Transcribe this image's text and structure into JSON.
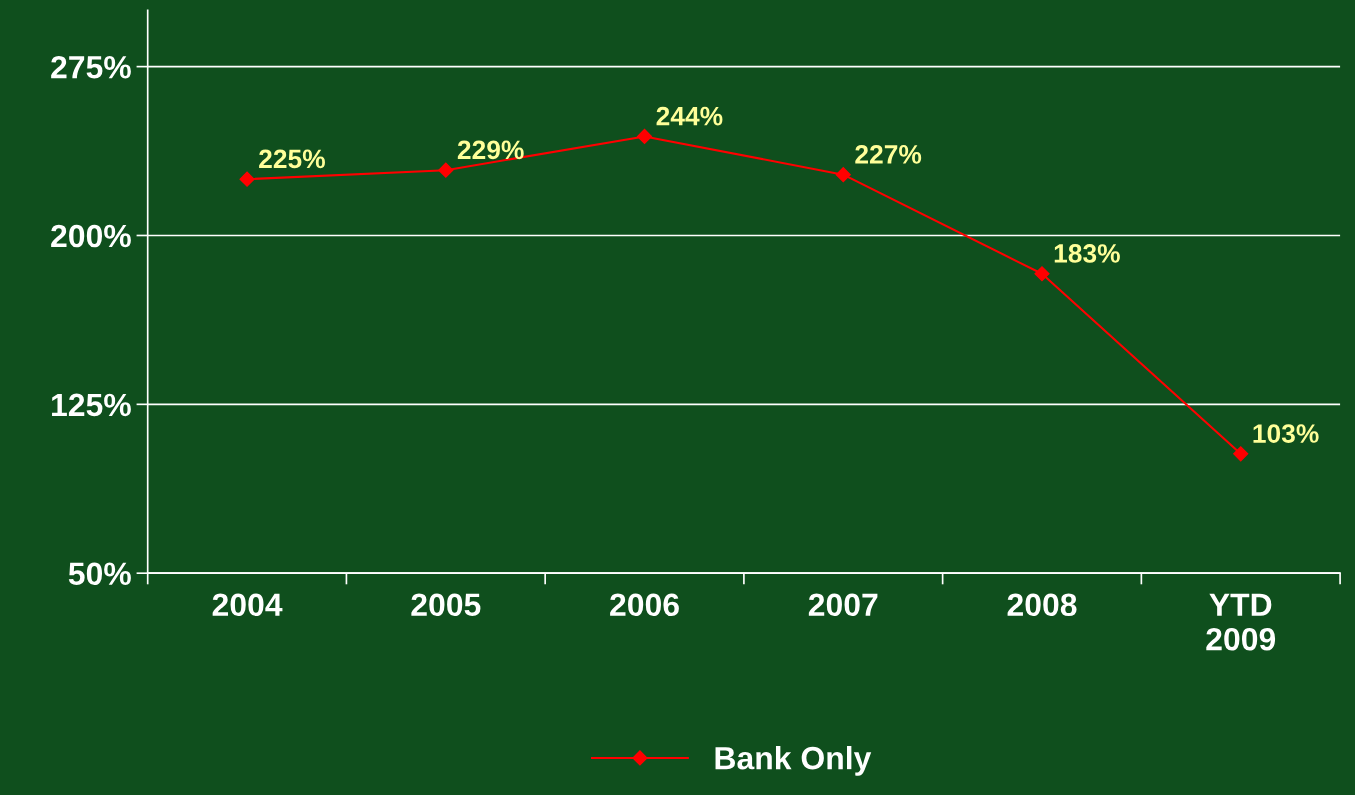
{
  "chart_data": {
    "type": "line",
    "categories": [
      "2004",
      "2005",
      "2006",
      "2007",
      "2008",
      "YTD\n2009"
    ],
    "series": [
      {
        "name": "Bank Only",
        "color": "#ff0000",
        "values": [
          225,
          229,
          244,
          227,
          183,
          103
        ],
        "value_labels": [
          "225%",
          "229%",
          "244%",
          "227%",
          "183%",
          "103%"
        ]
      }
    ],
    "ylim": [
      50,
      300
    ],
    "yticks": [
      {
        "value": 50,
        "label": "50%"
      },
      {
        "value": 125,
        "label": "125%"
      },
      {
        "value": 200,
        "label": "200%"
      },
      {
        "value": 275,
        "label": "275%"
      }
    ],
    "grid": "y",
    "legend": "bottom",
    "marker": "diamond",
    "line_style": "solid"
  }
}
